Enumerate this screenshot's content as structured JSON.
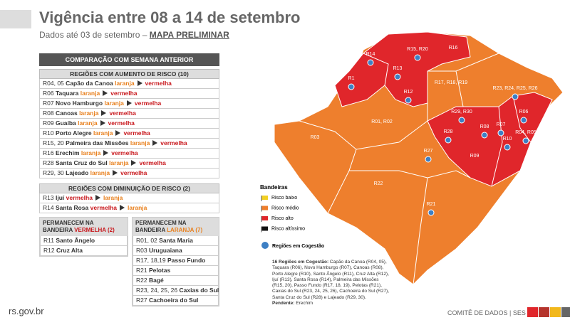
{
  "header": {
    "title": "Vigência entre 08 a 14 de setembro",
    "subtitle": "Dados até 03 de setembro –",
    "subtitle_link": "MAPA PRELIMINAR"
  },
  "comparison": {
    "title": "COMPARAÇÃO COM SEMANA ANTERIOR",
    "increase": {
      "title": "REGIÕES COM AUMENTO DE RISCO (10)",
      "rows": [
        {
          "code": "R04, 05",
          "name": "Capão da Canoa",
          "from": "laranja",
          "to": "vermelha"
        },
        {
          "code": "R06",
          "name": "Taquara",
          "from": "laranja",
          "to": "vermelha"
        },
        {
          "code": "R07",
          "name": "Novo Hamburgo",
          "from": "laranja",
          "to": "vermelha"
        },
        {
          "code": "R08",
          "name": "Canoas",
          "from": "laranja",
          "to": "vermelha"
        },
        {
          "code": "R09",
          "name": "Guaíba",
          "from": "laranja",
          "to": "vermelha"
        },
        {
          "code": "R10",
          "name": "Porto Alegre",
          "from": "laranja",
          "to": "vermelha"
        },
        {
          "code": "R15, 20",
          "name": "Palmeira das Missões",
          "from": "laranja",
          "to": "vermelha"
        },
        {
          "code": "R16",
          "name": "Erechim",
          "from": "laranja",
          "to": "vermelha"
        },
        {
          "code": "R28",
          "name": "Santa Cruz do Sul",
          "from": "laranja",
          "to": "vermelha"
        },
        {
          "code": "R29, 30",
          "name": "Lajeado",
          "from": "laranja",
          "to": "vermelha"
        }
      ]
    },
    "decrease": {
      "title": "REGIÕES COM DIMINUIÇÃO DE RISCO (2)",
      "rows": [
        {
          "code": "R13",
          "name": "Ijuí",
          "from": "vermelha",
          "to": "laranja"
        },
        {
          "code": "R14",
          "name": "Santa Rosa",
          "from": "vermelha",
          "to": "laranja"
        }
      ]
    },
    "remain_red": {
      "title_parts": [
        "PERMANECEM NA BANDEIRA",
        "VERMELHA",
        "(2)"
      ],
      "rows": [
        {
          "code": "R11",
          "name": "Santo Ângelo"
        },
        {
          "code": "R12",
          "name": "Cruz Alta"
        }
      ]
    },
    "remain_orange": {
      "title_parts": [
        "PERMANECEM NA BANDEIRA",
        "LARANJA",
        "(7)"
      ],
      "rows": [
        {
          "code": "R01, 02",
          "name": "Santa Maria"
        },
        {
          "code": "R03",
          "name": "Uruguaiana"
        },
        {
          "code": "R17, 18,19",
          "name": "Passo Fundo"
        },
        {
          "code": "R21",
          "name": "Pelotas"
        },
        {
          "code": "R22",
          "name": "Bagé"
        },
        {
          "code": "R23, 24, 25, 26",
          "name": "Caxias do Sul"
        },
        {
          "code": "R27",
          "name": "Cachoeira do Sul"
        }
      ]
    }
  },
  "map": {
    "labels": [
      "R14",
      "R15, R20",
      "R16",
      "R1",
      "R13",
      "R12",
      "R17, R18, R19",
      "R23, R24, R25, R26",
      "R01, R02",
      "R03",
      "R29, R30",
      "R06",
      "R28",
      "R08",
      "R07",
      "R04, R05",
      "R10",
      "R09",
      "R27",
      "R22",
      "R21"
    ]
  },
  "legend": {
    "title": "Bandeiras",
    "items": [
      "Risco baixo",
      "Risco médio",
      "Risco alto",
      "Risco altíssimo"
    ],
    "cogestao": "Regiões em Cogestão"
  },
  "note": {
    "title": "16 Regiões em Cogestão:",
    "text": "Capão da Canoa (R04, 05), Taquara (R06), Novo Hamburgo (R07), Canoas (R08), Porto Alegre (R10), Santo Ângelo (R11), Cruz Alta (R12), Ijuí (R13), Santa Rosa (R14), Palmeira das Missões (R15, 20), Passo Fundo (R17, 18, 19), Pelotas (R21), Caxias do Sul (R23, 24, 25, 26), Cachoeira do Sul (R27), Santa Cruz do Sul (R28) e Lajeado (R29, 30).",
    "pending_label": "Pendente:",
    "pending": "Erechim"
  },
  "footer": {
    "site": "rs.gov.br",
    "credit": "COMITÊ DE DADOS | SES"
  }
}
